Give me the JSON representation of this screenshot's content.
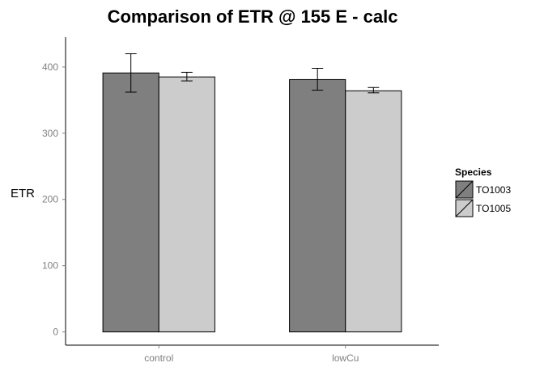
{
  "chart_data": {
    "type": "bar",
    "title": "Comparison of ETR @ 155 E - calc",
    "xlabel": "",
    "ylabel": "ETR",
    "ylim": [
      -20,
      445
    ],
    "yticks": [
      0,
      100,
      200,
      300,
      400
    ],
    "categories": [
      "control",
      "lowCu"
    ],
    "series": [
      {
        "name": "TO1003",
        "color": "#7f7f7f",
        "values": [
          391,
          381
        ],
        "error_low": [
          362,
          365
        ],
        "error_high": [
          420,
          398
        ]
      },
      {
        "name": "TO1005",
        "color": "#cccccc",
        "values": [
          385,
          364
        ],
        "error_low": [
          379,
          361
        ],
        "error_high": [
          392,
          369
        ]
      }
    ],
    "legend": {
      "title": "Species",
      "placement": "right"
    },
    "grid": false
  }
}
